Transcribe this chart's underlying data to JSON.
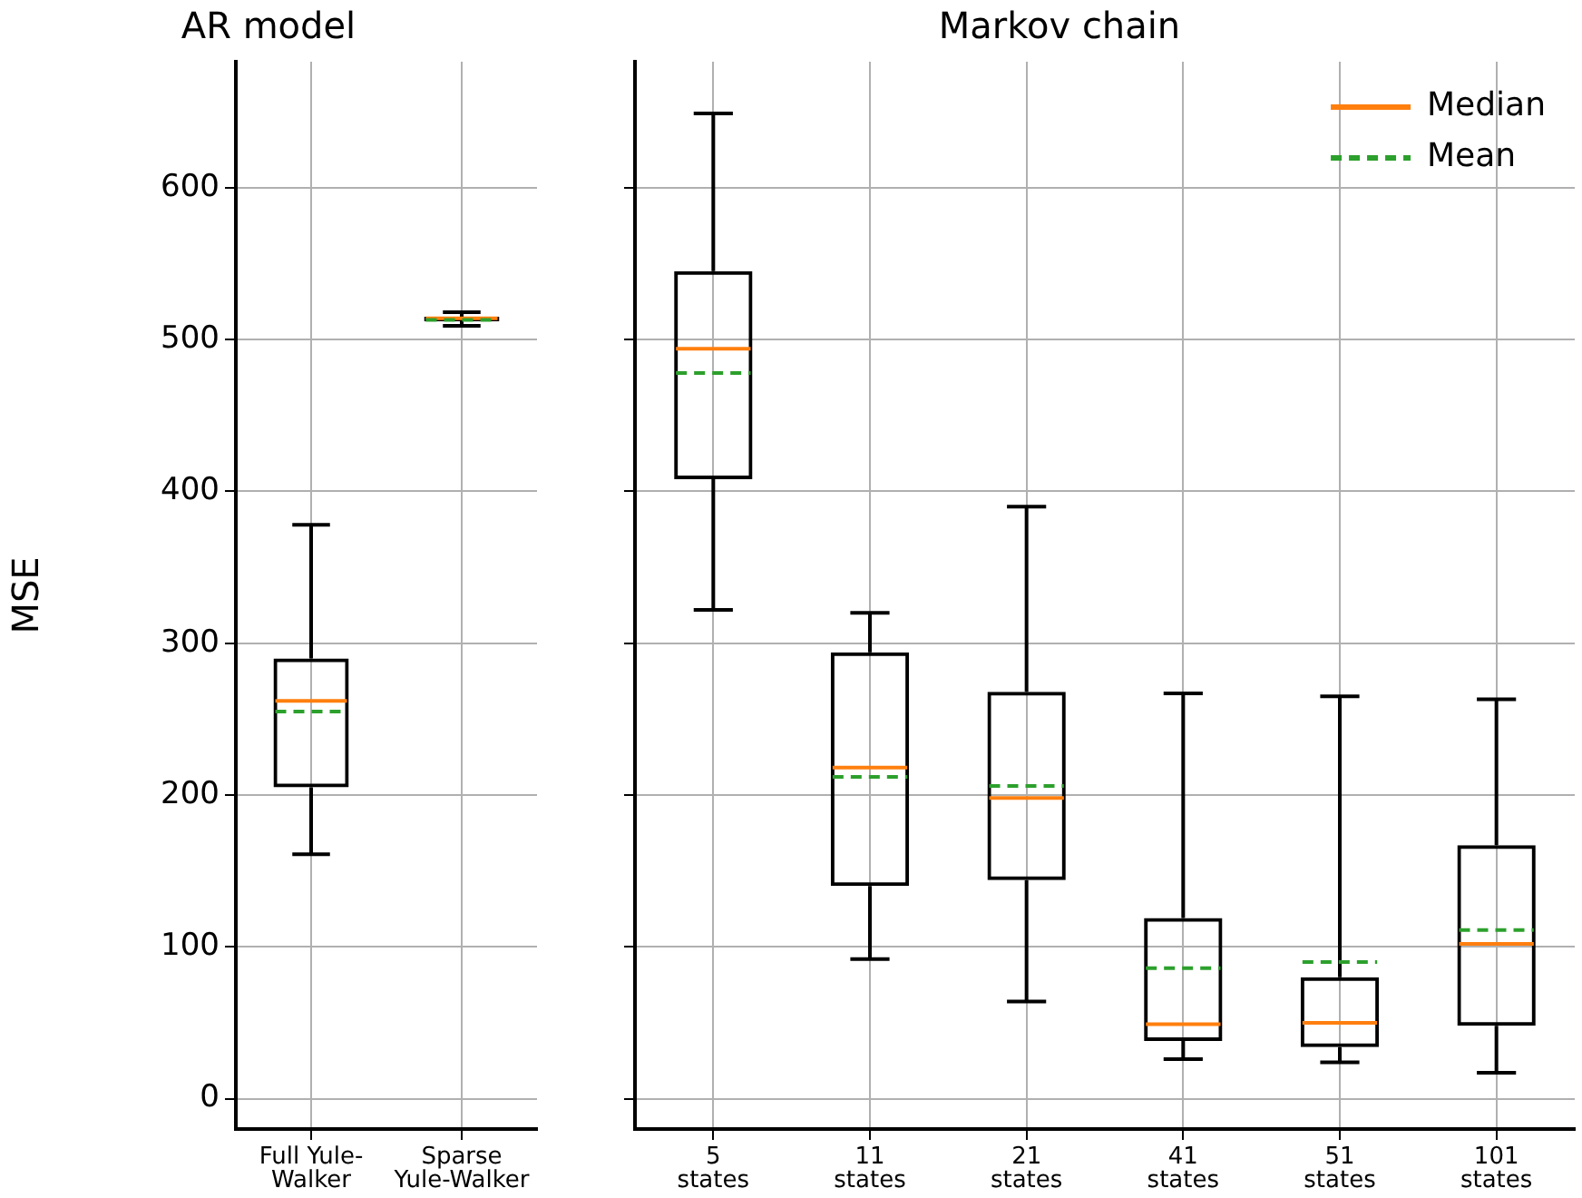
{
  "chart_data": [
    {
      "type": "box",
      "title": "AR model",
      "ylabel": "MSE",
      "categories": [
        "Full Yule-\nWalker",
        "Sparse\nYule-Walker"
      ],
      "boxes": [
        {
          "low": 161,
          "q1": 205,
          "median": 262,
          "q3": 290,
          "high": 378,
          "mean": 255
        },
        {
          "low": 509,
          "q1": 512,
          "median": 514,
          "q3": 515,
          "high": 518,
          "mean": 513
        }
      ],
      "color": "#000000",
      "line_style": "dashed",
      "ylim": [
        -20,
        683
      ],
      "yticks": [
        0,
        100,
        200,
        300,
        400,
        500,
        600
      ],
      "grid": true
    },
    {
      "type": "box",
      "title": "Markov chain",
      "categories": [
        "5\nstates",
        "11\nstates",
        "21\nstates",
        "41\nstates",
        "51\nstates",
        "101\nstates"
      ],
      "boxes": [
        {
          "low": 322,
          "q1": 408,
          "median": 494,
          "q3": 545,
          "high": 649,
          "mean": 478
        },
        {
          "low": 92,
          "q1": 140,
          "median": 218,
          "q3": 294,
          "high": 320,
          "mean": 212
        },
        {
          "low": 64,
          "q1": 144,
          "median": 198,
          "q3": 268,
          "high": 390,
          "mean": 206
        },
        {
          "low": 26,
          "q1": 38,
          "median": 49,
          "q3": 119,
          "high": 267,
          "mean": 86
        },
        {
          "low": 24,
          "q1": 34,
          "median": 50,
          "q3": 80,
          "high": 265,
          "mean": 90
        },
        {
          "low": 17,
          "q1": 48,
          "median": 102,
          "q3": 167,
          "high": 263,
          "mean": 111
        }
      ],
      "color": "#000000",
      "line_style": "dashed",
      "annotations": [
        "Median",
        "Mean"
      ],
      "ylim": [
        -20,
        683
      ],
      "yticks": [
        0,
        100,
        200,
        300,
        400,
        500,
        600
      ],
      "grid": true,
      "tick_labels": "x"
    }
  ]
}
